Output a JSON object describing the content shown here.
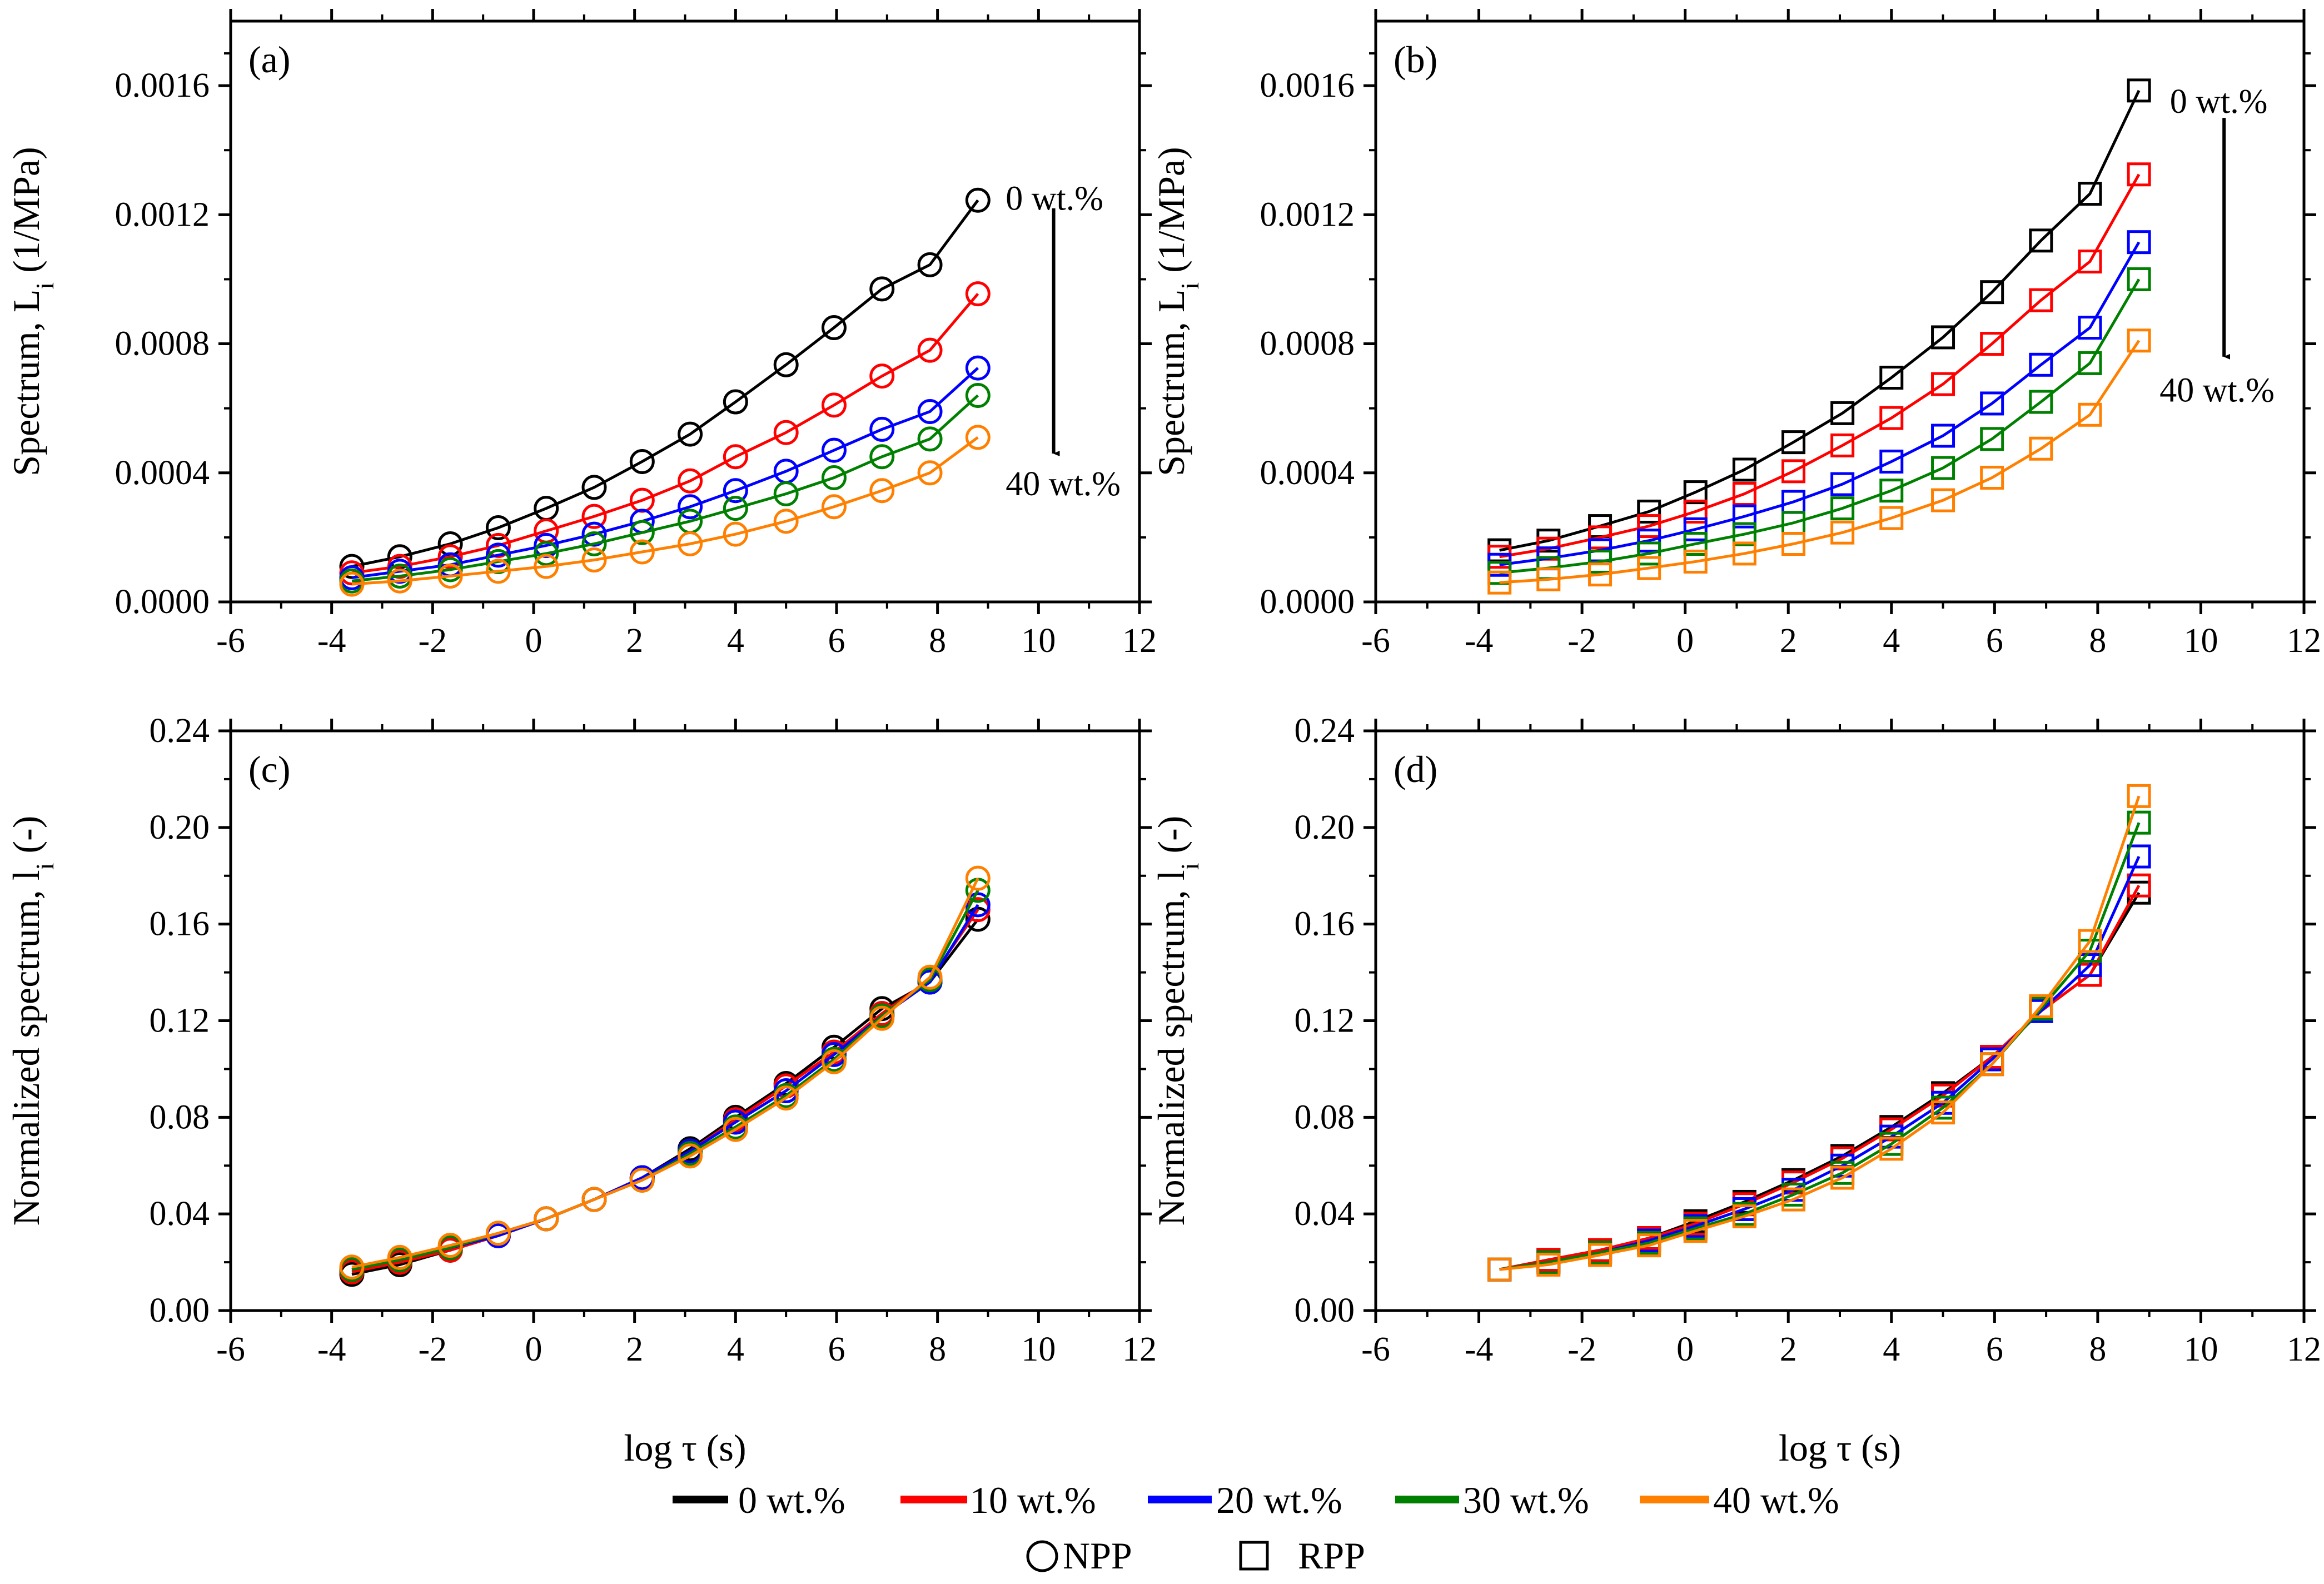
{
  "legend": {
    "entries": [
      {
        "label": "0 wt.%",
        "color": "#000000"
      },
      {
        "label": "10 wt.%",
        "color": "#ff0000"
      },
      {
        "label": "20 wt.%",
        "color": "#0000ff"
      },
      {
        "label": "30 wt.%",
        "color": "#008000"
      },
      {
        "label": "40 wt.%",
        "color": "#ff8000"
      }
    ],
    "markers": [
      {
        "label": "NPP",
        "shape": "circle"
      },
      {
        "label": "RPP",
        "shape": "square"
      }
    ]
  },
  "chart_data": [
    {
      "panel": "(a)",
      "type": "line",
      "marker": "circle",
      "xlabel": "log τ (s)",
      "ylabel": "Spectrum, L",
      "ylabel_sub": "i",
      "ylabel_unit": " (1/MPa)",
      "xlim": [
        -6,
        12
      ],
      "ylim": [
        0,
        0.0018
      ],
      "xticks": [
        -6,
        -4,
        -2,
        0,
        2,
        4,
        6,
        8,
        10,
        12
      ],
      "yticks": [
        0.0,
        0.0004,
        0.0008,
        0.0012,
        0.0016
      ],
      "ytick_labels": [
        "0.0000",
        "0.0004",
        "0.0008",
        "0.0012",
        "0.0016"
      ],
      "x": [
        -3.6,
        -2.65,
        -1.65,
        -0.7,
        0.25,
        1.2,
        2.15,
        3.1,
        4.0,
        5.0,
        5.95,
        6.9,
        7.85,
        8.8
      ],
      "series": [
        {
          "name": "0 wt.%",
          "values": [
            0.00011,
            0.00014,
            0.00018,
            0.00023,
            0.00029,
            0.000355,
            0.000435,
            0.00052,
            0.00062,
            0.000735,
            0.00085,
            0.00097,
            0.001045,
            0.001245
          ]
        },
        {
          "name": "10 wt.%",
          "values": [
            9e-05,
            0.00011,
            0.00014,
            0.000175,
            0.00022,
            0.000265,
            0.000315,
            0.000375,
            0.00045,
            0.000525,
            0.00061,
            0.0007,
            0.00078,
            0.000955
          ]
        },
        {
          "name": "20 wt.%",
          "values": [
            7.5e-05,
            9.5e-05,
            0.000115,
            0.000145,
            0.000175,
            0.00021,
            0.00025,
            0.000295,
            0.000345,
            0.000405,
            0.00047,
            0.000535,
            0.00059,
            0.000725
          ]
        },
        {
          "name": "30 wt.%",
          "values": [
            6.5e-05,
            8e-05,
            0.0001,
            0.000125,
            0.00015,
            0.00018,
            0.000215,
            0.00025,
            0.00029,
            0.000335,
            0.000385,
            0.00045,
            0.000505,
            0.00064
          ]
        },
        {
          "name": "40 wt.%",
          "values": [
            5.5e-05,
            6.5e-05,
            8e-05,
            9.5e-05,
            0.00011,
            0.00013,
            0.000155,
            0.00018,
            0.00021,
            0.00025,
            0.000295,
            0.000345,
            0.0004,
            0.00051
          ]
        }
      ],
      "annotations": {
        "top": "0 wt.%",
        "bottom": "40 wt.%",
        "arrow_from": [
          10.3,
          0.00122
        ],
        "arrow_to": [
          10.3,
          0.00046
        ],
        "top_pos": [
          9.35,
          0.00125
        ],
        "bottom_pos": [
          9.35,
          0.000365
        ]
      }
    },
    {
      "panel": "(b)",
      "type": "line",
      "marker": "square",
      "xlabel": "log τ (s)",
      "ylabel": "Spectrum, L",
      "ylabel_sub": "i",
      "ylabel_unit": " (1/MPa)",
      "xlim": [
        -6,
        12
      ],
      "ylim": [
        0,
        0.0018
      ],
      "xticks": [
        -6,
        -4,
        -2,
        0,
        2,
        4,
        6,
        8,
        10,
        12
      ],
      "yticks": [
        0.0,
        0.0004,
        0.0008,
        0.0012,
        0.0016
      ],
      "ytick_labels": [
        "0.0000",
        "0.0004",
        "0.0008",
        "0.0012",
        "0.0016"
      ],
      "x": [
        -3.6,
        -2.65,
        -1.65,
        -0.7,
        0.2,
        1.15,
        2.1,
        3.05,
        4.0,
        5.0,
        5.95,
        6.9,
        7.85,
        8.8
      ],
      "series": [
        {
          "name": "0 wt.%",
          "values": [
            0.00016,
            0.00019,
            0.000235,
            0.00028,
            0.00034,
            0.00041,
            0.000495,
            0.000585,
            0.000695,
            0.00082,
            0.00096,
            0.00112,
            0.001265,
            0.001585
          ]
        },
        {
          "name": "10 wt.%",
          "values": [
            0.00014,
            0.000165,
            0.0002,
            0.000235,
            0.00028,
            0.000335,
            0.000405,
            0.000485,
            0.00057,
            0.000675,
            0.0008,
            0.000935,
            0.001055,
            0.001325
          ]
        },
        {
          "name": "20 wt.%",
          "values": [
            0.000115,
            0.000135,
            0.00016,
            0.00019,
            0.000225,
            0.000265,
            0.00031,
            0.000365,
            0.000435,
            0.000515,
            0.000615,
            0.000735,
            0.00085,
            0.001115
          ]
        },
        {
          "name": "30 wt.%",
          "values": [
            9e-05,
            0.000105,
            0.000125,
            0.00015,
            0.00018,
            0.00021,
            0.000245,
            0.00029,
            0.000345,
            0.000415,
            0.000505,
            0.00062,
            0.00074,
            0.001
          ]
        },
        {
          "name": "40 wt.%",
          "values": [
            6e-05,
            7e-05,
            8.5e-05,
            0.000105,
            0.000125,
            0.00015,
            0.00018,
            0.000215,
            0.00026,
            0.000315,
            0.000385,
            0.000475,
            0.00058,
            0.00081
          ]
        }
      ],
      "annotations": {
        "top": "0 wt.%",
        "bottom": "40 wt.%",
        "arrow_from": [
          10.45,
          0.0015
        ],
        "arrow_to": [
          10.45,
          0.00076
        ],
        "top_pos": [
          9.4,
          0.00155
        ],
        "bottom_pos": [
          9.2,
          0.000655
        ]
      }
    },
    {
      "panel": "(c)",
      "type": "line",
      "marker": "circle",
      "xlabel": "log τ (s)",
      "ylabel": "Normalized spectrum, l",
      "ylabel_sub": "i",
      "ylabel_unit": " (-)",
      "xlim": [
        -6,
        12
      ],
      "ylim": [
        0,
        0.24
      ],
      "xticks": [
        -6,
        -4,
        -2,
        0,
        2,
        4,
        6,
        8,
        10,
        12
      ],
      "yticks": [
        0.0,
        0.04,
        0.08,
        0.12,
        0.16,
        0.2,
        0.24
      ],
      "ytick_labels": [
        "0.00",
        "0.04",
        "0.08",
        "0.12",
        "0.16",
        "0.20",
        "0.24"
      ],
      "x": [
        -3.6,
        -2.65,
        -1.65,
        -0.7,
        0.25,
        1.2,
        2.15,
        3.1,
        4.0,
        5.0,
        5.95,
        6.9,
        7.85,
        8.8
      ],
      "series": [
        {
          "name": "0 wt.%",
          "values": [
            0.015,
            0.019,
            0.025,
            0.031,
            0.038,
            0.046,
            0.055,
            0.067,
            0.08,
            0.094,
            0.109,
            0.125,
            0.136,
            0.162
          ]
        },
        {
          "name": "10 wt.%",
          "values": [
            0.016,
            0.02,
            0.025,
            0.031,
            0.038,
            0.046,
            0.055,
            0.066,
            0.079,
            0.093,
            0.107,
            0.123,
            0.137,
            0.166
          ]
        },
        {
          "name": "20 wt.%",
          "values": [
            0.017,
            0.021,
            0.026,
            0.031,
            0.038,
            0.046,
            0.055,
            0.066,
            0.078,
            0.091,
            0.106,
            0.122,
            0.136,
            0.168
          ]
        },
        {
          "name": "30 wt.%",
          "values": [
            0.017,
            0.021,
            0.026,
            0.032,
            0.038,
            0.046,
            0.054,
            0.065,
            0.076,
            0.089,
            0.104,
            0.122,
            0.137,
            0.174
          ]
        },
        {
          "name": "40 wt.%",
          "values": [
            0.018,
            0.022,
            0.027,
            0.032,
            0.038,
            0.046,
            0.054,
            0.064,
            0.075,
            0.088,
            0.103,
            0.121,
            0.138,
            0.179
          ]
        }
      ]
    },
    {
      "panel": "(d)",
      "type": "line",
      "marker": "square",
      "xlabel": "log τ (s)",
      "ylabel": "Normalized spectrum, l",
      "ylabel_sub": "i",
      "ylabel_unit": " (-)",
      "xlim": [
        -6,
        12
      ],
      "ylim": [
        0,
        0.24
      ],
      "xticks": [
        -6,
        -4,
        -2,
        0,
        2,
        4,
        6,
        8,
        10,
        12
      ],
      "yticks": [
        0.0,
        0.04,
        0.08,
        0.12,
        0.16,
        0.2,
        0.24
      ],
      "ytick_labels": [
        "0.00",
        "0.04",
        "0.08",
        "0.12",
        "0.16",
        "0.20",
        "0.24"
      ],
      "x": [
        -3.6,
        -2.65,
        -1.65,
        -0.7,
        0.2,
        1.15,
        2.1,
        3.05,
        4.0,
        5.0,
        5.95,
        6.9,
        7.85,
        8.8
      ],
      "series": [
        {
          "name": "0 wt.%",
          "values": [
            0.017,
            0.021,
            0.025,
            0.03,
            0.037,
            0.045,
            0.054,
            0.064,
            0.076,
            0.09,
            0.105,
            0.124,
            0.139,
            0.173
          ]
        },
        {
          "name": "10 wt.%",
          "values": [
            0.017,
            0.021,
            0.025,
            0.03,
            0.036,
            0.044,
            0.053,
            0.063,
            0.075,
            0.089,
            0.105,
            0.124,
            0.139,
            0.176
          ]
        },
        {
          "name": "20 wt.%",
          "values": [
            0.017,
            0.02,
            0.024,
            0.029,
            0.035,
            0.042,
            0.05,
            0.06,
            0.072,
            0.086,
            0.104,
            0.124,
            0.143,
            0.188
          ]
        },
        {
          "name": "30 wt.%",
          "values": [
            0.017,
            0.02,
            0.024,
            0.028,
            0.034,
            0.04,
            0.048,
            0.057,
            0.069,
            0.084,
            0.102,
            0.125,
            0.149,
            0.202
          ]
        },
        {
          "name": "40 wt.%",
          "values": [
            0.017,
            0.019,
            0.023,
            0.027,
            0.033,
            0.039,
            0.046,
            0.055,
            0.067,
            0.082,
            0.102,
            0.126,
            0.153,
            0.213
          ]
        }
      ]
    }
  ]
}
